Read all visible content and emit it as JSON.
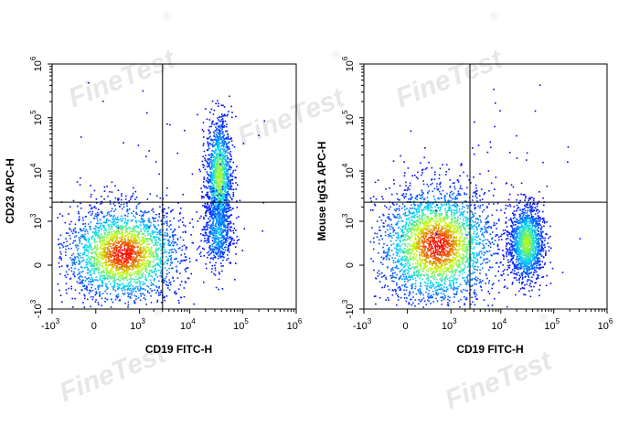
{
  "watermark": {
    "brand": "FineTest",
    "mark": "®"
  },
  "palette": {
    "axis": "#000000",
    "density_low": "#0000ff",
    "density_mid": "#00d8ff",
    "density_high_mid": "#c8ff00",
    "density_high": "#ff0000"
  },
  "chart_data": [
    {
      "type": "scatter",
      "title": "",
      "xlabel": "CD19 FITC-H",
      "ylabel": "CD23 APC-H",
      "scale": "biexponential",
      "xlim": [
        -1000,
        1000000
      ],
      "ylim": [
        -1000,
        1000000
      ],
      "x_ticks": [
        {
          "base": "-10",
          "exp": "3"
        },
        {
          "base": "0",
          "exp": ""
        },
        {
          "base": "10",
          "exp": "3"
        },
        {
          "base": "10",
          "exp": "4"
        },
        {
          "base": "10",
          "exp": "5"
        },
        {
          "base": "10",
          "exp": "6"
        }
      ],
      "y_ticks": [
        {
          "base": "-10",
          "exp": "3"
        },
        {
          "base": "0",
          "exp": ""
        },
        {
          "base": "10",
          "exp": "3"
        },
        {
          "base": "10",
          "exp": "4"
        },
        {
          "base": "10",
          "exp": "5"
        },
        {
          "base": "10",
          "exp": "6"
        }
      ],
      "gate": {
        "x": 3000,
        "y": 2500
      },
      "populations": [
        {
          "x_center": 400,
          "y_center": 120,
          "x_spread_decades": 0.55,
          "y_spread_decades": 0.45,
          "count": 2600,
          "peak": "high"
        },
        {
          "x_center": 35000,
          "y_center": 8000,
          "x_spread_decades": 0.12,
          "y_spread_decades": 0.55,
          "count": 1400,
          "peak": "mid"
        },
        {
          "x_center": 33000,
          "y_center": 600,
          "x_spread_decades": 0.14,
          "y_spread_decades": 0.35,
          "count": 500,
          "peak": "low"
        }
      ]
    },
    {
      "type": "scatter",
      "title": "",
      "xlabel": "CD19 FITC-H",
      "ylabel": "Mouse IgG1 APC-H",
      "scale": "biexponential",
      "xlim": [
        -1000,
        1000000
      ],
      "ylim": [
        -1000,
        1000000
      ],
      "x_ticks": [
        {
          "base": "-10",
          "exp": "3"
        },
        {
          "base": "0",
          "exp": ""
        },
        {
          "base": "10",
          "exp": "3"
        },
        {
          "base": "10",
          "exp": "4"
        },
        {
          "base": "10",
          "exp": "5"
        },
        {
          "base": "10",
          "exp": "6"
        }
      ],
      "y_ticks": [
        {
          "base": "-10",
          "exp": "3"
        },
        {
          "base": "0",
          "exp": ""
        },
        {
          "base": "10",
          "exp": "3"
        },
        {
          "base": "10",
          "exp": "4"
        },
        {
          "base": "10",
          "exp": "5"
        },
        {
          "base": "10",
          "exp": "6"
        }
      ],
      "gate": {
        "x": 2500,
        "y": 2500
      },
      "populations": [
        {
          "x_center": 450,
          "y_center": 250,
          "x_spread_decades": 0.55,
          "y_spread_decades": 0.55,
          "count": 3000,
          "peak": "high"
        },
        {
          "x_center": 30000,
          "y_center": 300,
          "x_spread_decades": 0.16,
          "y_spread_decades": 0.35,
          "count": 1500,
          "peak": "mid"
        }
      ]
    }
  ]
}
